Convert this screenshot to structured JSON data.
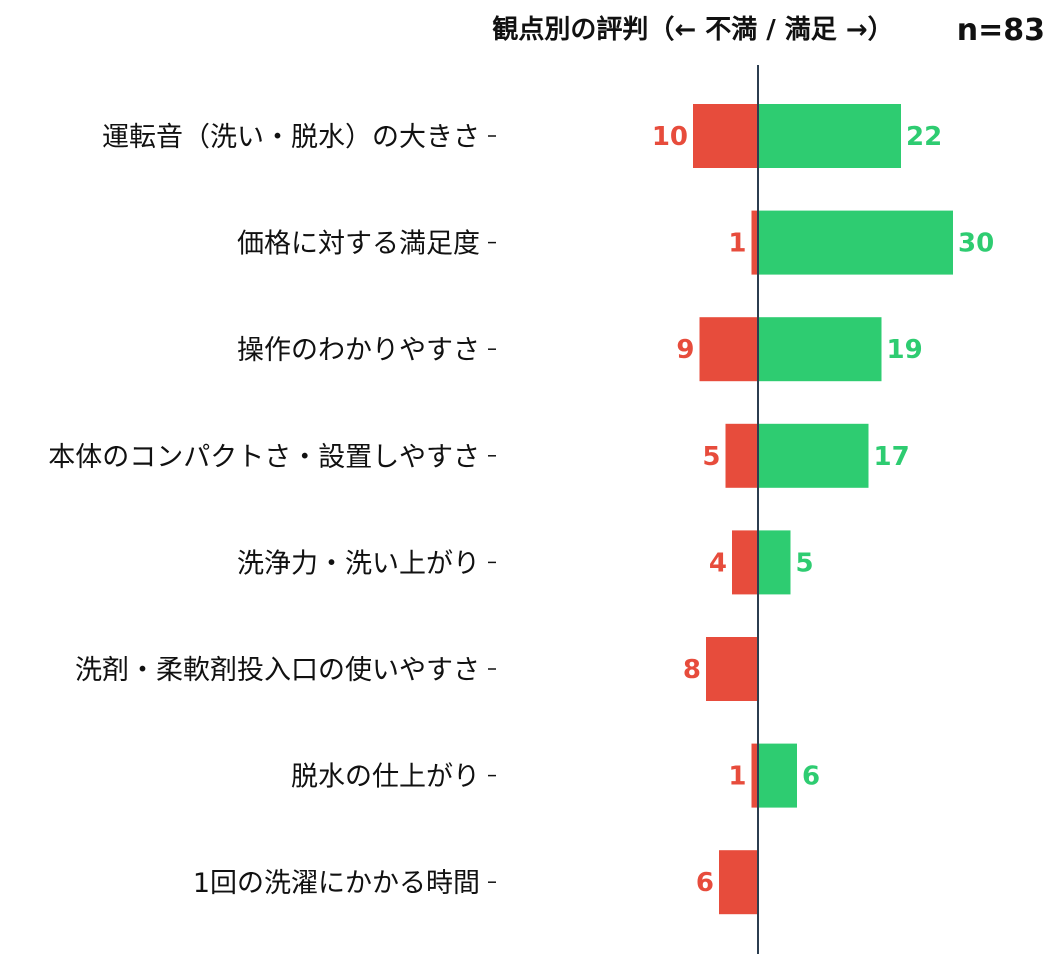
{
  "colors": {
    "negative": "#e74c3c",
    "positive": "#2ecc71",
    "axis": "#2c3e50",
    "text": "#111111"
  },
  "chart_data": {
    "type": "bar",
    "orientation": "horizontal-diverging",
    "title": "観点別の評判（← 不満 / 満足 →）",
    "annotation": "n=83",
    "categories": [
      "運転音（洗い・脱水）の大きさ",
      "価格に対する満足度",
      "操作のわかりやすさ",
      "本体のコンパクトさ・設置しやすさ",
      "洗浄力・洗い上がり",
      "洗剤・柔軟剤投入口の使いやすさ",
      "脱水の仕上がり",
      "1回の洗濯にかかる時間"
    ],
    "series": [
      {
        "values": [
          10,
          1,
          9,
          5,
          4,
          8,
          1,
          6
        ]
      },
      {
        "values": [
          22,
          30,
          19,
          17,
          5,
          0,
          6,
          0
        ]
      }
    ],
    "xlim": [
      -10,
      30
    ],
    "grid": false,
    "legend": "none"
  }
}
